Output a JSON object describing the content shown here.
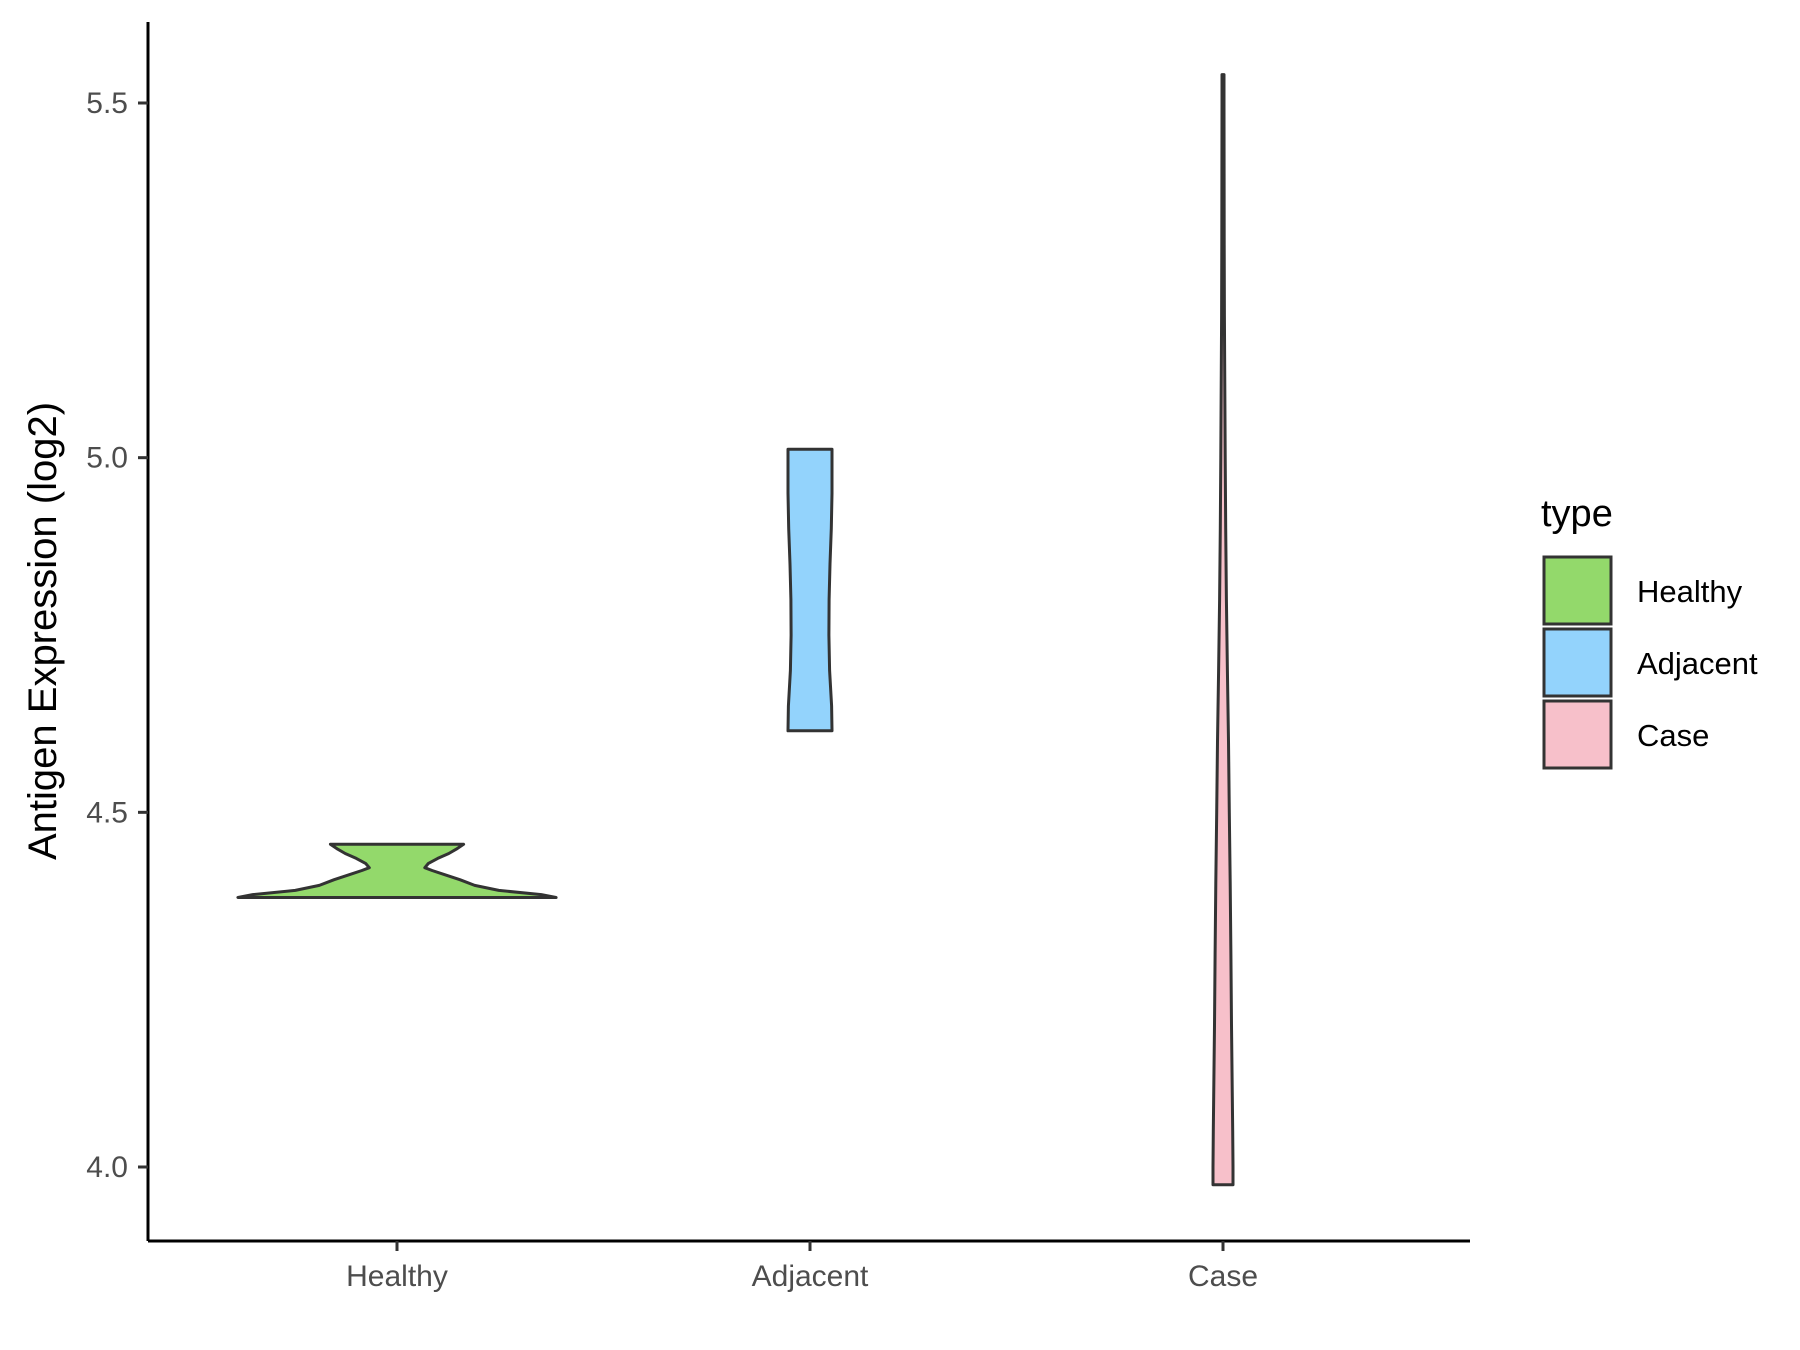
{
  "chart_data": {
    "type": "violin",
    "ylabel": "Antigen Expression (log2)",
    "xlabel": "",
    "ylim": [
      3.9,
      5.62
    ],
    "yticks": [
      4.0,
      4.5,
      5.0,
      5.5
    ],
    "ytick_labels": [
      "4.0",
      "4.5",
      "5.0",
      "5.5"
    ],
    "categories": [
      "Healthy",
      "Adjacent",
      "Case"
    ],
    "legend": {
      "title": "type",
      "position": "right",
      "entries": [
        "Healthy",
        "Adjacent",
        "Case"
      ]
    },
    "series": [
      {
        "name": "Healthy",
        "color": "#93d96b",
        "min": 4.38,
        "max": 4.455,
        "density_profile": [
          [
            4.38,
            0.86
          ],
          [
            4.384,
            0.78
          ],
          [
            4.39,
            0.55
          ],
          [
            4.397,
            0.42
          ],
          [
            4.405,
            0.34
          ],
          [
            4.412,
            0.26
          ],
          [
            4.418,
            0.19
          ],
          [
            4.422,
            0.15
          ],
          [
            4.428,
            0.17
          ],
          [
            4.435,
            0.22
          ],
          [
            4.442,
            0.28
          ],
          [
            4.448,
            0.32
          ],
          [
            4.455,
            0.36
          ]
        ]
      },
      {
        "name": "Adjacent",
        "color": "#93d3fc",
        "min": 4.615,
        "max": 5.012,
        "density_profile": [
          [
            4.615,
            1.0
          ],
          [
            4.65,
            0.98
          ],
          [
            4.7,
            0.89
          ],
          [
            4.75,
            0.86
          ],
          [
            4.8,
            0.87
          ],
          [
            4.85,
            0.91
          ],
          [
            4.9,
            0.97
          ],
          [
            4.95,
            1.0
          ],
          [
            5.012,
            1.0
          ]
        ]
      },
      {
        "name": "Case",
        "color": "#f7c0ca",
        "min": 3.975,
        "max": 5.54,
        "density_profile": [
          [
            3.975,
            1.0
          ],
          [
            4.0,
            1.0
          ],
          [
            4.05,
            0.97
          ],
          [
            4.1,
            0.93
          ],
          [
            4.2,
            0.85
          ],
          [
            4.3,
            0.79
          ],
          [
            4.4,
            0.72
          ],
          [
            4.5,
            0.63
          ],
          [
            4.6,
            0.55
          ],
          [
            4.7,
            0.44
          ],
          [
            4.8,
            0.34
          ],
          [
            4.9,
            0.27
          ],
          [
            5.0,
            0.22
          ],
          [
            5.1,
            0.18
          ],
          [
            5.2,
            0.14
          ],
          [
            5.3,
            0.12
          ],
          [
            5.4,
            0.11
          ],
          [
            5.5,
            0.1
          ],
          [
            5.54,
            0.1
          ]
        ]
      }
    ]
  }
}
